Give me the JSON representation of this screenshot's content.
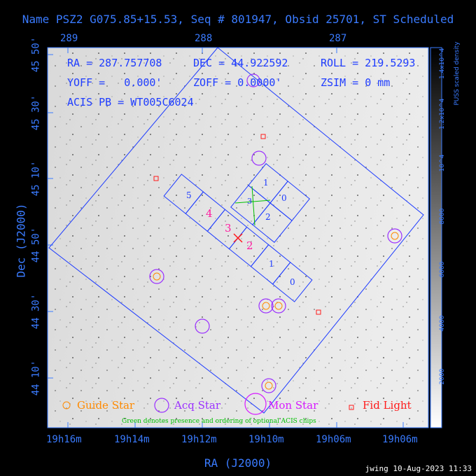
{
  "title": "Name PSZ2 G075.85+15.53, Seq # 801947, Obsid 25701, ST Scheduled",
  "top_ticks": [
    "289",
    "288",
    "287"
  ],
  "bottom_ticks": [
    "19h16m",
    "19h14m",
    "19h12m",
    "19h10m",
    "19h06m",
    "19h06m"
  ],
  "left_ticks": [
    "45 50'",
    "45 30'",
    "45 10'",
    "44 50'",
    "44 30'",
    "44 10'"
  ],
  "x_axis_label": "RA (J2000)",
  "y_axis_label": "Dec (J2000)",
  "info": {
    "ra": "RA = 287.757708",
    "dec": "DEC = 44.922592",
    "roll": "ROLL = 219.5293",
    "yoff": "YOFF =   0.000'",
    "zoff": "ZOFF = 0.0000'",
    "zsim": "ZSIM = 0 mm",
    "acis_pb": "ACIS PB = WT005C6024"
  },
  "colorbar": {
    "title": "PUSS scaled density",
    "ticks": [
      "1.4x10^4",
      "1.2x10^4",
      "10^4",
      "8000",
      "6000",
      "4000",
      "2000"
    ]
  },
  "chips": {
    "s": [
      "5",
      "4",
      "3",
      "2",
      "1",
      "0"
    ],
    "i": [
      "1",
      "0",
      "3",
      "2"
    ]
  },
  "legend": {
    "guide": "Guide Star",
    "acq": "Acq Star",
    "mon": "Mon Star",
    "fid": "Fid Light",
    "note": "Green denotes presence and ordering of optional ACIS chips"
  },
  "footer": "jwing 10-Aug-2023 11:33",
  "colors": {
    "axis": "#3a7bff",
    "guide": "#ff8a00",
    "acq": "#9b30ff",
    "mon": "#d61aff",
    "fid": "#ff1a1a",
    "chip_label": "#ff1aa0",
    "optional": "#00c000"
  }
}
